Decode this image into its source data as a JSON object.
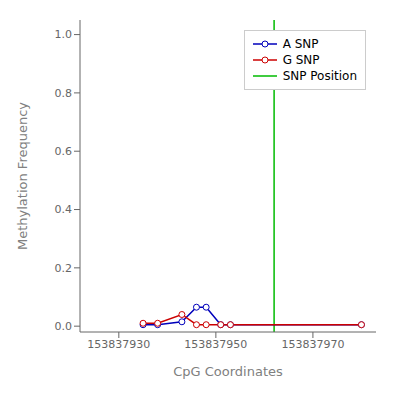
{
  "chart_data": {
    "type": "line",
    "xlabel": "CpG Coordinates",
    "ylabel": "Methylation Frequency",
    "xlim": [
      153837922,
      153837983
    ],
    "ylim": [
      -0.02,
      1.05
    ],
    "xticks": [
      153837930,
      153837950,
      153837970
    ],
    "yticks": [
      {
        "value": 0.0,
        "label": "0.0"
      },
      0.2,
      0.4,
      0.6,
      0.8,
      {
        "value": 1.0,
        "label": "1.0"
      }
    ],
    "series": [
      {
        "name": "A SNP",
        "color": "#0000bb",
        "marker": "circle",
        "x": [
          153837935,
          153837938,
          153837943,
          153837946,
          153837948,
          153837951,
          153837953,
          153837980
        ],
        "values": [
          0.005,
          0.005,
          0.015,
          0.065,
          0.065,
          0.005,
          0.005,
          0.005
        ]
      },
      {
        "name": "G SNP",
        "color": "#cc0000",
        "marker": "circle",
        "x": [
          153837935,
          153837938,
          153837943,
          153837946,
          153837948,
          153837951,
          153837953,
          153837980
        ],
        "values": [
          0.01,
          0.01,
          0.04,
          0.005,
          0.005,
          0.005,
          0.005,
          0.005
        ]
      }
    ],
    "reference_lines": [
      {
        "name": "SNP Position",
        "x": 153837962,
        "color": "#00bb00"
      }
    ],
    "legend": "upper right",
    "grid": false
  }
}
